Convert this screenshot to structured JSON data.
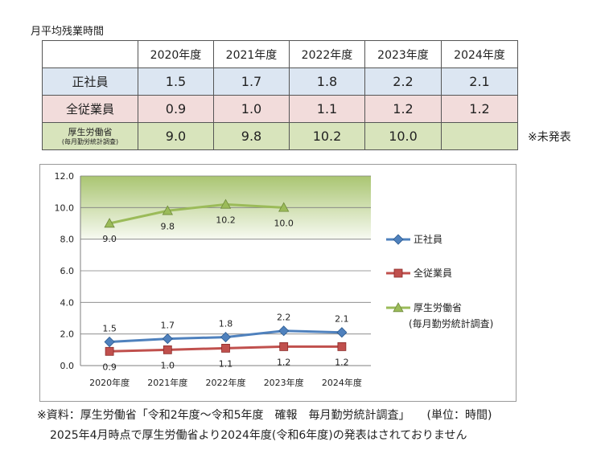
{
  "caption": "月平均残業時間",
  "table": {
    "columns": [
      "2020年度",
      "2021年度",
      "2022年度",
      "2023年度",
      "2024年度"
    ],
    "rows": [
      {
        "label": "正社員",
        "values": [
          "1.5",
          "1.7",
          "1.8",
          "2.2",
          "2.1"
        ]
      },
      {
        "label": "全従業員",
        "values": [
          "0.9",
          "1.0",
          "1.1",
          "1.2",
          "1.2"
        ]
      },
      {
        "label": "厚生労働省",
        "sublabel": "(毎月勤労統計調査)",
        "values": [
          "9.0",
          "9.8",
          "10.2",
          "10.0",
          ""
        ]
      }
    ]
  },
  "note_right": "※未発表",
  "chart_data": {
    "type": "line",
    "categories": [
      "2020年度",
      "2021年度",
      "2022年度",
      "2023年度",
      "2024年度"
    ],
    "ylim": [
      0,
      12
    ],
    "yticks": [
      "0.0",
      "2.0",
      "4.0",
      "6.0",
      "8.0",
      "10.0",
      "12.0"
    ],
    "series": [
      {
        "name": "正社員",
        "color": "#4f81bd",
        "marker": "diamond",
        "values": [
          1.5,
          1.7,
          1.8,
          2.2,
          2.1
        ],
        "labels": [
          "1.5",
          "1.7",
          "1.8",
          "2.2",
          "2.1"
        ],
        "label_pos": "above"
      },
      {
        "name": "全従業員",
        "color": "#c0504d",
        "marker": "square",
        "values": [
          0.9,
          1.0,
          1.1,
          1.2,
          1.2
        ],
        "labels": [
          "0.9",
          "1.0",
          "1.1",
          "1.2",
          "1.2"
        ],
        "label_pos": "below"
      },
      {
        "name": "厚生労働省",
        "name_sub": "(毎月勤労統計調査)",
        "color": "#9bbb59",
        "marker": "triangle",
        "values": [
          9.0,
          9.8,
          10.2,
          10.0,
          null
        ],
        "labels": [
          "9.0",
          "9.8",
          "10.2",
          "10.0",
          ""
        ],
        "label_pos": "below"
      }
    ],
    "band": {
      "from": 8,
      "to": 12,
      "color": "#9bbb59"
    },
    "legend": "right",
    "grid": true
  },
  "footer": {
    "line1": "※資料：厚生労働省「令和2年度～令和5年度　確報　毎月勤労統計調査」　　(単位：時間)",
    "line2": "2025年4月時点で厚生労働省より2024年度(令和6年度)の発表はされておりません"
  }
}
